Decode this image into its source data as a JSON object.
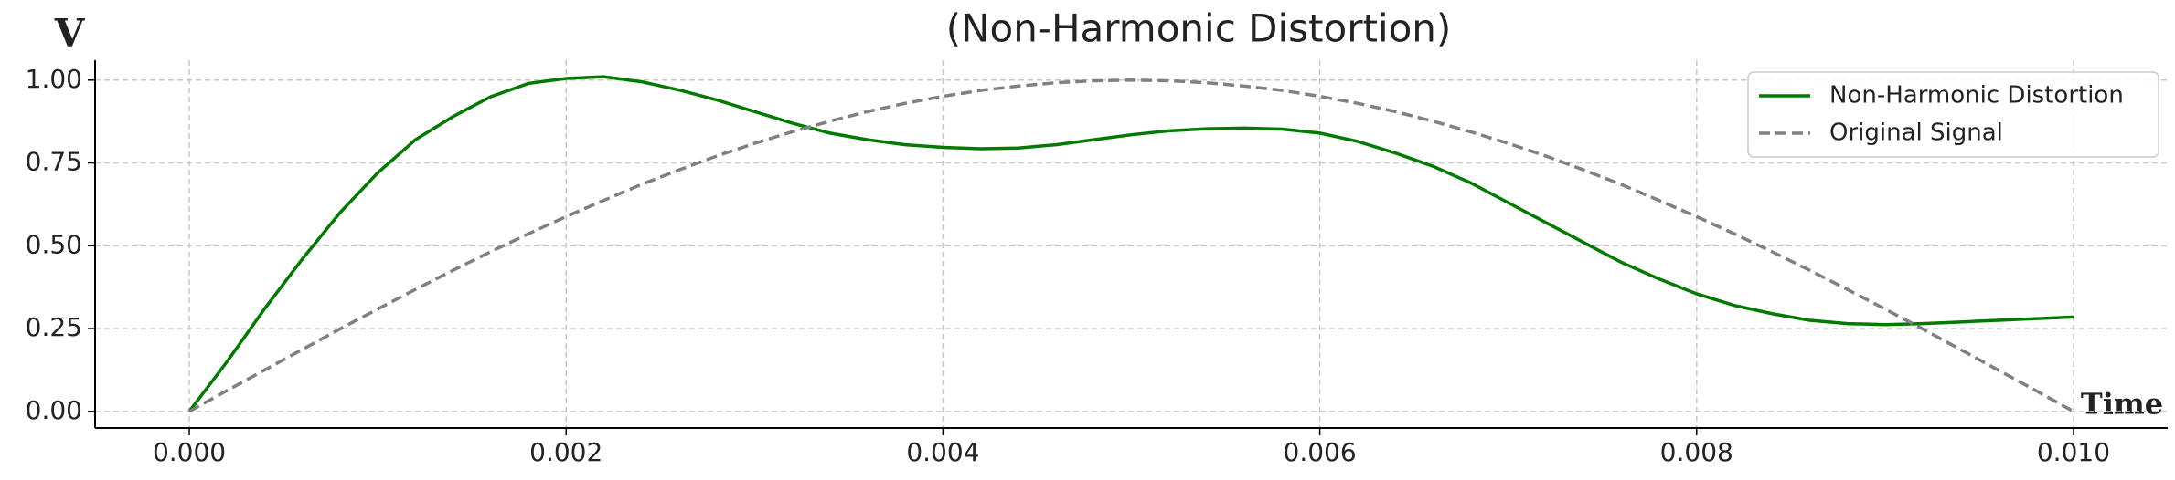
{
  "chart_data": {
    "type": "line",
    "title": "(Non-Harmonic Distortion)",
    "x_label": "Time",
    "y_label": "V",
    "x": [
      0,
      0.0002,
      0.0004,
      0.0006,
      0.0008,
      0.001,
      0.0012,
      0.0014,
      0.0016,
      0.0018,
      0.002,
      0.0022,
      0.0024,
      0.0026,
      0.0028,
      0.003,
      0.0032,
      0.0034,
      0.0036,
      0.0038,
      0.004,
      0.0042,
      0.0044,
      0.0046,
      0.0048,
      0.005,
      0.0052,
      0.0054,
      0.0056,
      0.0058,
      0.006,
      0.0062,
      0.0064,
      0.0066,
      0.0068,
      0.007,
      0.0072,
      0.0074,
      0.0076,
      0.0078,
      0.008,
      0.0082,
      0.0084,
      0.0086,
      0.0088,
      0.009,
      0.0092,
      0.0094,
      0.0096,
      0.0098,
      0.01
    ],
    "series": [
      {
        "name": "Non-Harmonic Distortion",
        "color": "#007a00",
        "dash": "solid",
        "values": [
          0,
          0.15,
          0.31,
          0.46,
          0.6,
          0.72,
          0.82,
          0.89,
          0.95,
          0.99,
          1.005,
          1.01,
          0.995,
          0.97,
          0.94,
          0.905,
          0.87,
          0.84,
          0.82,
          0.805,
          0.797,
          0.793,
          0.795,
          0.805,
          0.82,
          0.835,
          0.847,
          0.853,
          0.855,
          0.852,
          0.84,
          0.815,
          0.78,
          0.74,
          0.69,
          0.63,
          0.57,
          0.51,
          0.45,
          0.4,
          0.355,
          0.32,
          0.295,
          0.275,
          0.265,
          0.262,
          0.265,
          0.27,
          0.275,
          0.28,
          0.285
        ]
      },
      {
        "name": "Original Signal",
        "color": "#808080",
        "dash": "dashed",
        "values": [
          0,
          0.063,
          0.125,
          0.187,
          0.249,
          0.309,
          0.368,
          0.426,
          0.482,
          0.536,
          0.588,
          0.637,
          0.685,
          0.729,
          0.771,
          0.809,
          0.844,
          0.876,
          0.905,
          0.93,
          0.951,
          0.969,
          0.982,
          0.992,
          0.998,
          1,
          0.998,
          0.992,
          0.982,
          0.969,
          0.951,
          0.93,
          0.905,
          0.876,
          0.844,
          0.809,
          0.771,
          0.729,
          0.685,
          0.637,
          0.588,
          0.536,
          0.482,
          0.426,
          0.368,
          0.309,
          0.249,
          0.187,
          0.125,
          0.063,
          0
        ]
      }
    ],
    "xlim": [
      -0.0005,
      0.0105
    ],
    "ylim": [
      -0.05,
      1.06
    ],
    "xticks": [
      {
        "value": 0,
        "label": "0.000"
      },
      {
        "value": 0.002,
        "label": "0.002"
      },
      {
        "value": 0.004,
        "label": "0.004"
      },
      {
        "value": 0.006,
        "label": "0.006"
      },
      {
        "value": 0.008,
        "label": "0.008"
      },
      {
        "value": 0.01,
        "label": "0.010"
      }
    ],
    "yticks": [
      {
        "value": 0,
        "label": "0.00"
      },
      {
        "value": 0.25,
        "label": "0.25"
      },
      {
        "value": 0.5,
        "label": "0.50"
      },
      {
        "value": 0.75,
        "label": "0.75"
      },
      {
        "value": 1,
        "label": "1.00"
      }
    ],
    "grid": true,
    "legend": "upper right"
  }
}
